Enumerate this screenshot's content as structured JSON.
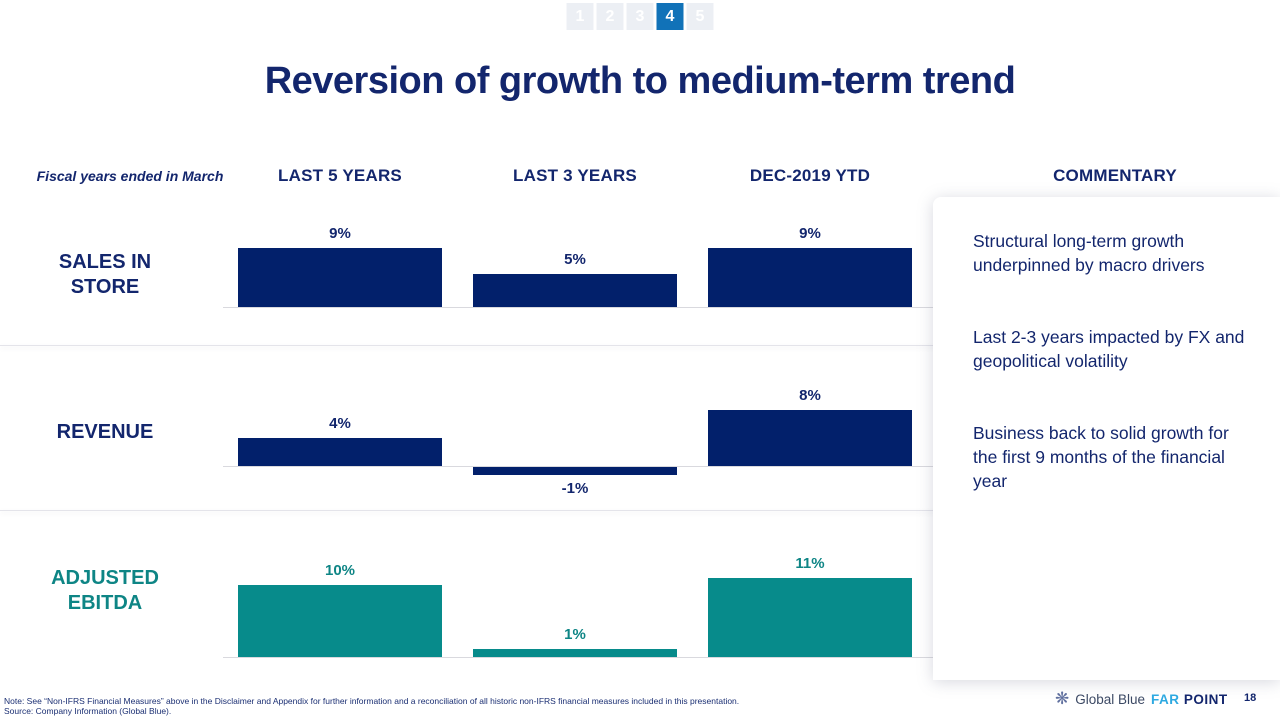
{
  "pager": {
    "items": [
      {
        "label": "1",
        "active": false
      },
      {
        "label": "2",
        "active": false
      },
      {
        "label": "3",
        "active": false
      },
      {
        "label": "4",
        "active": true
      },
      {
        "label": "5",
        "active": false
      }
    ]
  },
  "title": "Reversion of growth to medium-term trend",
  "table": {
    "fiscal_note": "Fiscal years ended in March",
    "columns": [
      "LAST 5 YEARS",
      "LAST 3 YEARS",
      "DEC-2019 YTD"
    ],
    "commentary_header": "COMMENTARY"
  },
  "chart_data": {
    "type": "bar",
    "categories": [
      "LAST 5 YEARS",
      "LAST 3 YEARS",
      "DEC-2019 YTD"
    ],
    "value_suffix": "%",
    "grid": false,
    "legend": "none",
    "series": [
      {
        "id": "sales-in-store",
        "name": "SALES IN STORE",
        "name_lines": {
          "0": "SALES IN",
          "1": "STORE"
        },
        "values": [
          9,
          5,
          9
        ],
        "labels": [
          "9%",
          "5%",
          "9%"
        ],
        "color": "#02206b",
        "label_color": "#13266d"
      },
      {
        "id": "revenue",
        "name": "REVENUE",
        "name_lines": {
          "0": "REVENUE"
        },
        "values": [
          4,
          -1,
          8
        ],
        "labels": [
          "4%",
          "-1%",
          "8%"
        ],
        "color": "#02206b",
        "label_color": "#13266d"
      },
      {
        "id": "adjusted-ebitda",
        "name": "ADJUSTED EBITDA",
        "name_lines": {
          "0": "ADJUSTED",
          "1": "EBITDA"
        },
        "values": [
          10,
          1,
          11
        ],
        "labels": [
          "10%",
          "1%",
          "11%"
        ],
        "color": "#078b8b",
        "label_color": "#0e8585"
      }
    ]
  },
  "commentary": {
    "paragraphs": [
      "Structural long-term growth underpinned by macro drivers",
      "Last 2-3 years impacted by FX and geopolitical volatility",
      "Business back to solid growth for the first 9 months of the financial year"
    ]
  },
  "footer": {
    "note": "Note: See “Non-IFRS Financial Measures” above in the Disclaimer and Appendix for further information and a reconciliation of all historic non-IFRS financial measures included in this presentation.",
    "source": "Source: Company Information (Global Blue).",
    "logo_global_blue": "Global Blue",
    "logo_far": "FAR",
    "logo_point": "POINT",
    "logo_icon": "starburst-icon",
    "page_number": "18"
  },
  "colors": {
    "accent_navy": "#13266d",
    "bar_navy": "#02206b",
    "bar_teal": "#078b8b",
    "pager_active_blue": "#1172b8"
  }
}
